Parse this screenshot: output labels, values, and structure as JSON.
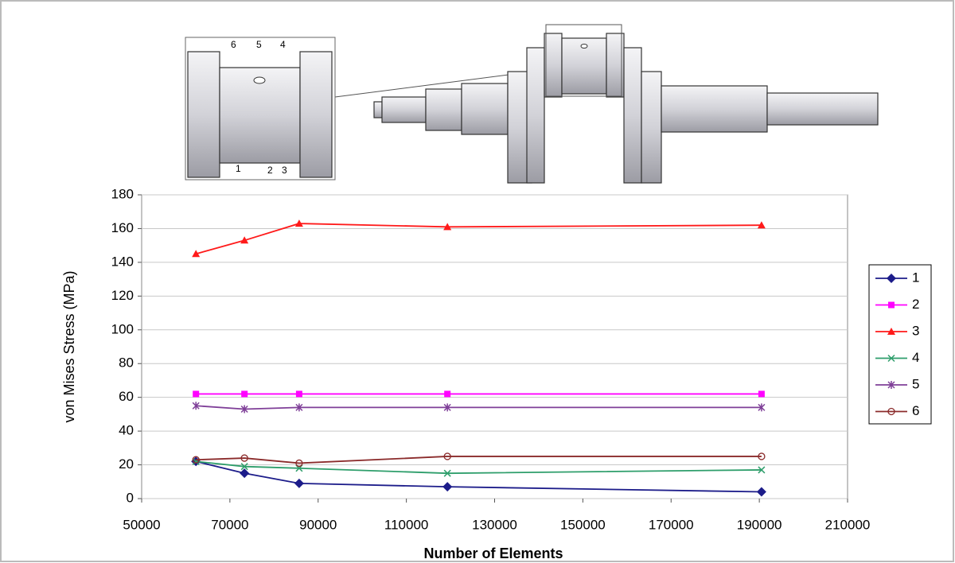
{
  "diagram": {
    "labels": [
      "6",
      "5",
      "4",
      "1",
      "2",
      "3"
    ]
  },
  "chart_data": {
    "type": "line",
    "x_label": "Number of Elements",
    "y_label": "von Mises Stress (MPa)",
    "x": [
      62300,
      73300,
      85700,
      119300,
      190500
    ],
    "xlim": [
      50000,
      210000
    ],
    "xticks": [
      50000,
      70000,
      90000,
      110000,
      130000,
      150000,
      170000,
      190000,
      210000
    ],
    "ylim": [
      0,
      180
    ],
    "yticks": [
      0,
      20,
      40,
      60,
      80,
      100,
      120,
      140,
      160,
      180
    ],
    "grid": true,
    "legend": "right",
    "series": [
      {
        "name": "1",
        "color": "#1c1c8a",
        "marker": "diamond",
        "values": [
          22,
          15,
          9,
          7,
          4
        ]
      },
      {
        "name": "2",
        "color": "#ff00ff",
        "marker": "square",
        "values": [
          62,
          62,
          62,
          62,
          62
        ]
      },
      {
        "name": "3",
        "color": "#ff1a1a",
        "marker": "triangle",
        "values": [
          145,
          153,
          163,
          161,
          162
        ]
      },
      {
        "name": "4",
        "color": "#2e9e6b",
        "marker": "x",
        "values": [
          22,
          19,
          18,
          15,
          17
        ]
      },
      {
        "name": "5",
        "color": "#7f3f98",
        "marker": "star",
        "values": [
          55,
          53,
          54,
          54,
          54
        ]
      },
      {
        "name": "6",
        "color": "#8b2b2b",
        "marker": "circle",
        "values": [
          23,
          24,
          21,
          25,
          25
        ]
      }
    ]
  }
}
